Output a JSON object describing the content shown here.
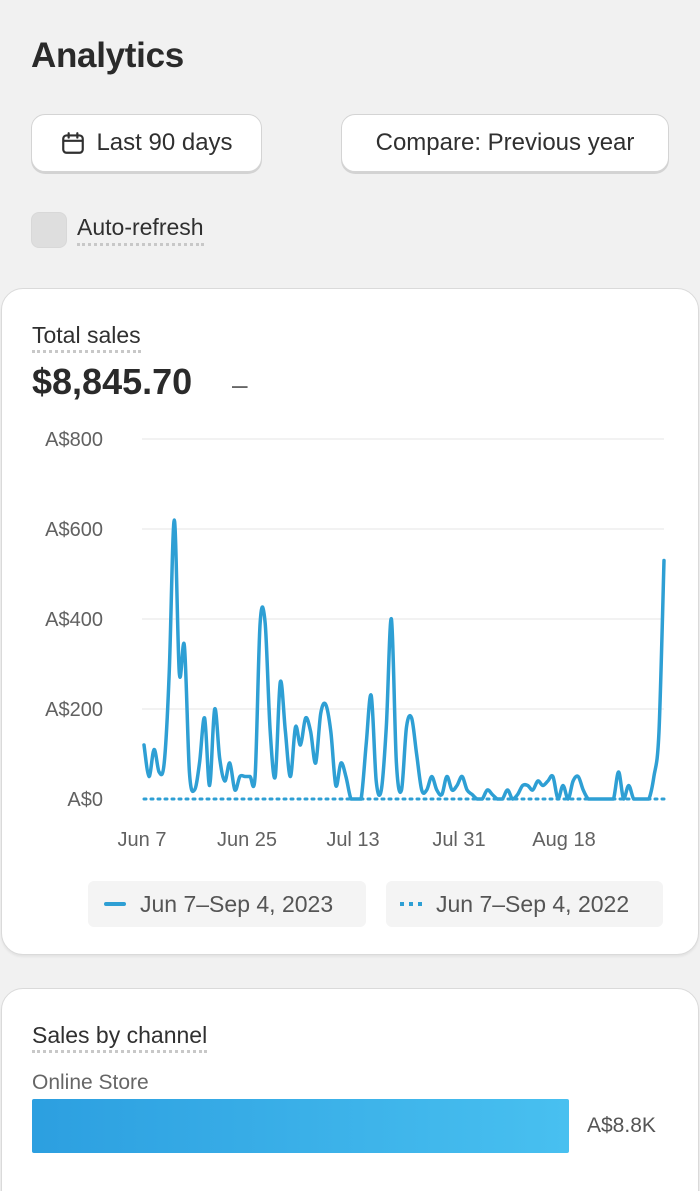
{
  "header": {
    "title": "Analytics"
  },
  "toolbar": {
    "date_range_label": "Last 90 days",
    "compare_label": "Compare: Previous year",
    "calendar_icon": "calendar-icon"
  },
  "auto_refresh": {
    "label": "Auto-refresh",
    "checked": false
  },
  "total_sales": {
    "title": "Total sales",
    "value": "$8,845.70",
    "change": "–",
    "legend": {
      "current": "Jun 7–Sep 4, 2023",
      "previous": "Jun 7–Sep 4, 2022"
    }
  },
  "chart_data": {
    "type": "line",
    "y_ticks": [
      "A$800",
      "A$600",
      "A$400",
      "A$200",
      "A$0"
    ],
    "x_ticks": [
      "Jun 7",
      "Jun 25",
      "Jul 13",
      "Jul 31",
      "Aug 18"
    ],
    "ylim": [
      0,
      800
    ],
    "grid": true,
    "legend_placement": "bottom",
    "color": "#2e9fd4",
    "series": [
      {
        "name": "Jun 7–Sep 4, 2023",
        "style": "solid",
        "values": [
          120,
          50,
          110,
          60,
          80,
          280,
          620,
          280,
          340,
          60,
          20,
          80,
          180,
          30,
          200,
          90,
          40,
          80,
          20,
          50,
          50,
          50,
          50,
          390,
          390,
          150,
          50,
          260,
          150,
          50,
          160,
          120,
          180,
          150,
          80,
          190,
          210,
          150,
          30,
          80,
          50,
          0,
          0,
          0,
          120,
          230,
          40,
          20,
          160,
          400,
          80,
          20,
          160,
          180,
          100,
          20,
          20,
          50,
          20,
          10,
          50,
          20,
          30,
          50,
          20,
          10,
          0,
          0,
          20,
          10,
          0,
          0,
          20,
          0,
          10,
          30,
          30,
          20,
          40,
          30,
          40,
          50,
          0,
          30,
          0,
          40,
          50,
          20,
          0,
          0,
          0,
          0,
          0,
          0,
          60,
          0,
          30,
          0,
          0,
          0,
          0,
          50,
          150,
          530
        ]
      },
      {
        "name": "Jun 7–Sep 4, 2022",
        "style": "dotted",
        "values": [
          0,
          0
        ]
      }
    ]
  },
  "sales_by_channel": {
    "title": "Sales by channel",
    "items": [
      {
        "name": "Online Store",
        "value_label": "A$8.8K",
        "share": 1.0
      }
    ]
  }
}
